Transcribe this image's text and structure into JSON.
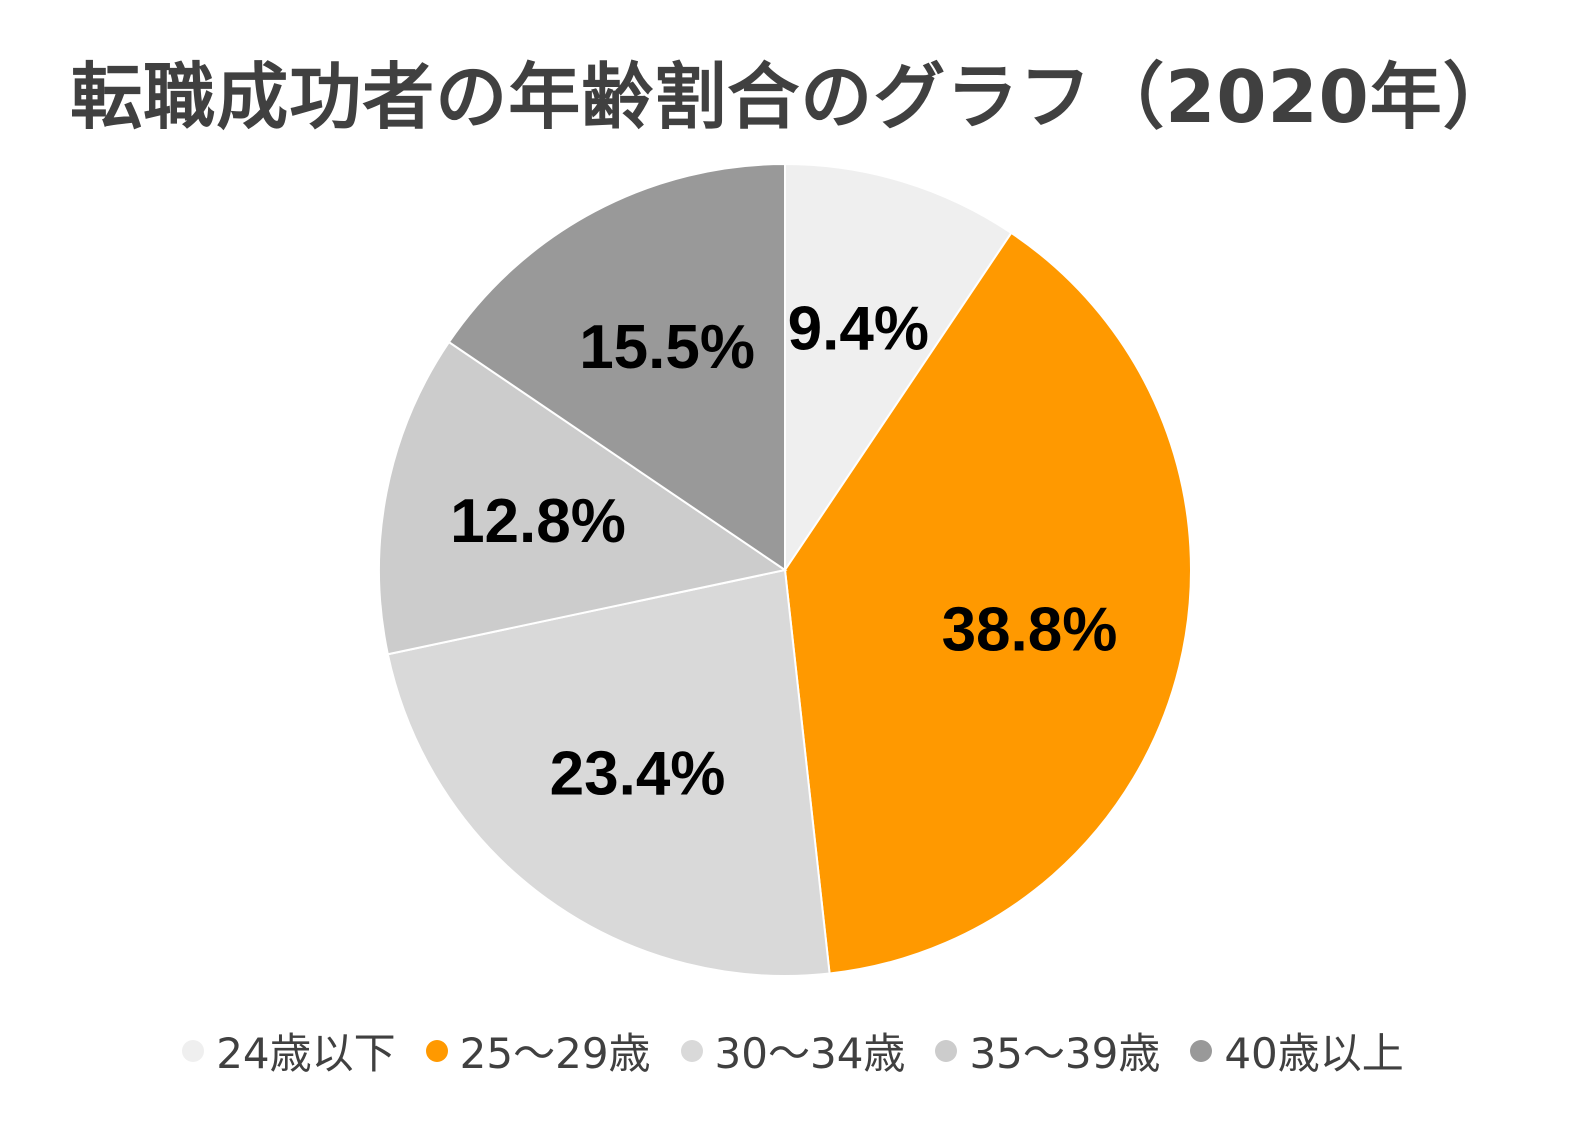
{
  "chart_data": {
    "type": "pie",
    "title": "転職成功者の年齢割合のグラフ（2020年）",
    "categories": [
      "24歳以下",
      "25〜29歳",
      "30〜34歳",
      "35〜39歳",
      "40歳以上"
    ],
    "values": [
      9.4,
      38.8,
      23.4,
      12.8,
      15.5
    ],
    "labels": [
      "9.4%",
      "38.8%",
      "23.4%",
      "12.8%",
      "15.5%"
    ],
    "colors": [
      "#efefef",
      "#ff9900",
      "#d9d9d9",
      "#cccccc",
      "#999999"
    ],
    "legend_position": "bottom",
    "start_angle": "top",
    "direction": "clockwise"
  }
}
